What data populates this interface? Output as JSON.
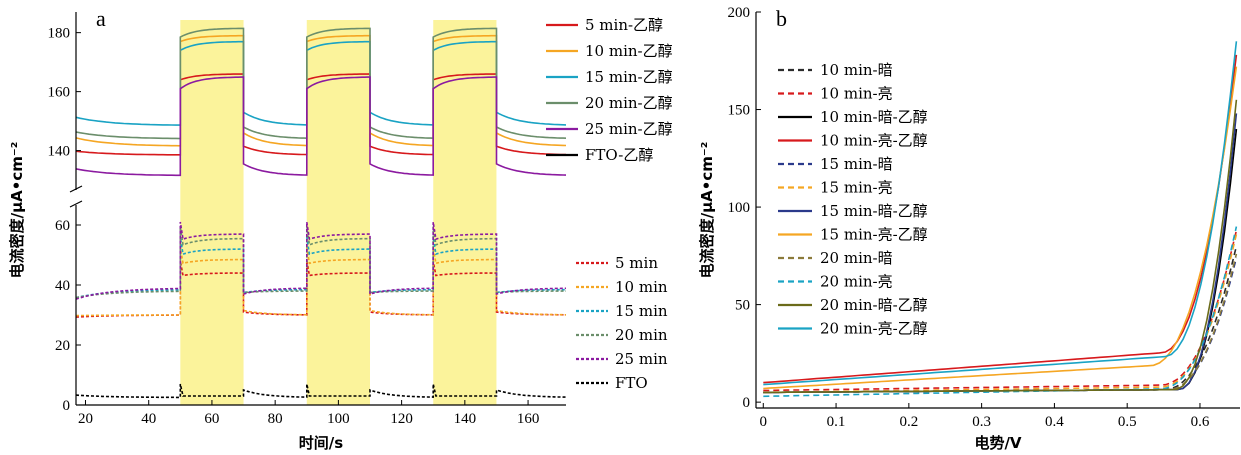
{
  "chart_data": [
    {
      "panel": "a",
      "type": "line",
      "xlabel": "时间/s",
      "ylabel": "电流密度/μA•cm⁻²",
      "xlim": [
        17,
        172
      ],
      "xticks": [
        20,
        40,
        60,
        80,
        100,
        120,
        140,
        160
      ],
      "upper_ylim": [
        128,
        187
      ],
      "upper_yticks": [
        140,
        160,
        180
      ],
      "lower_ylim": [
        0,
        65
      ],
      "lower_yticks": [
        0,
        20,
        40,
        60
      ],
      "light_on_intervals": [
        [
          50,
          70
        ],
        [
          90,
          110
        ],
        [
          130,
          150
        ]
      ],
      "light_color": "#fbf39b",
      "upper_series": [
        {
          "name": "5 min-乙醇",
          "color": "#d7191c",
          "dash": false,
          "dark": [
            139,
            138.5
          ],
          "light": [
            164,
            166
          ]
        },
        {
          "name": "10 min-乙醇",
          "color": "#f5a623",
          "dark": [
            143.5,
            141.5
          ],
          "light": [
            177,
            179
          ],
          "dash": false
        },
        {
          "name": "15 min-乙醇",
          "color": "#1aa3c4",
          "dark": [
            150.5,
            148.5
          ],
          "light": [
            174,
            177
          ],
          "dash": false
        },
        {
          "name": "20 min-乙醇",
          "color": "#6b8e6b",
          "dark": [
            145.5,
            144
          ],
          "light": [
            178.5,
            181.5
          ],
          "dash": false
        },
        {
          "name": "25 min-乙醇",
          "color": "#8b1aa0",
          "dark": [
            133,
            131.5
          ],
          "light": [
            161,
            165
          ],
          "dash": false
        }
      ],
      "upper_extra_legend": [
        {
          "name": "FTO-乙醇",
          "color": "#000000"
        }
      ],
      "lower_series": [
        {
          "name": "5 min",
          "color": "#d7191c",
          "dash": true,
          "dark": [
            28.5,
            30
          ],
          "light": [
            43,
            44
          ]
        },
        {
          "name": "10 min",
          "color": "#f5a623",
          "dash": true,
          "dark": [
            29,
            30
          ],
          "light": [
            47,
            48.5
          ]
        },
        {
          "name": "15 min",
          "color": "#1aa3c4",
          "dash": true,
          "dark": [
            35,
            38.5
          ],
          "light": [
            50,
            52
          ]
        },
        {
          "name": "20 min",
          "color": "#6b8e6b",
          "dash": true,
          "dark": [
            35,
            38
          ],
          "light": [
            53,
            55.5
          ]
        },
        {
          "name": "25 min",
          "color": "#8b1aa0",
          "dash": true,
          "dark": [
            34.5,
            39
          ],
          "light": [
            55,
            57
          ]
        },
        {
          "name": "FTO",
          "color": "#000000",
          "dash": true,
          "dark": [
            2.5,
            2.5
          ],
          "light": [
            3,
            3
          ]
        }
      ]
    },
    {
      "panel": "b",
      "type": "line",
      "xlabel": "电势/V",
      "ylabel": "电流密度/μA•cm⁻²",
      "xlim": [
        -0.01,
        0.655
      ],
      "ylim": [
        -3,
        200
      ],
      "xticks": [
        0,
        0.1,
        0.2,
        0.3,
        0.4,
        0.5,
        0.6
      ],
      "yticks": [
        0,
        50,
        100,
        150,
        200
      ],
      "series": [
        {
          "name": "10 min-暗",
          "color": "#2b2b2b",
          "dash": true,
          "base": 5,
          "slope": 2.5,
          "knee": 0.55,
          "end": 80
        },
        {
          "name": "10 min-亮",
          "color": "#d7191c",
          "dash": true,
          "base": 6,
          "slope": 5,
          "knee": 0.545,
          "end": 88
        },
        {
          "name": "10 min-暗-乙醇",
          "color": "#000000",
          "dash": false,
          "base": 5,
          "slope": 2.5,
          "knee": 0.57,
          "end": 140
        },
        {
          "name": "10 min-亮-乙醇",
          "color": "#d7191c",
          "dash": false,
          "base": 10,
          "slope": 28,
          "knee": 0.545,
          "end": 178
        },
        {
          "name": "15 min-暗",
          "color": "#2b3a8b",
          "dash": true,
          "base": 5,
          "slope": 2.5,
          "knee": 0.555,
          "end": 74
        },
        {
          "name": "15 min-亮",
          "color": "#f5a623",
          "dash": true,
          "base": 5,
          "slope": 5,
          "knee": 0.545,
          "end": 86
        },
        {
          "name": "15 min-暗-乙醇",
          "color": "#2b3a8b",
          "dash": false,
          "base": 5,
          "slope": 2.5,
          "knee": 0.57,
          "end": 148
        },
        {
          "name": "15 min-亮-乙醇",
          "color": "#f5a623",
          "dash": false,
          "base": 7,
          "slope": 22,
          "knee": 0.53,
          "end": 172
        },
        {
          "name": "20 min-暗",
          "color": "#8b7a3a",
          "dash": true,
          "base": 5,
          "slope": 2.5,
          "knee": 0.555,
          "end": 76
        },
        {
          "name": "20 min-亮",
          "color": "#1aa3c4",
          "dash": true,
          "base": 3,
          "slope": 7,
          "knee": 0.545,
          "end": 90
        },
        {
          "name": "20 min-暗-乙醇",
          "color": "#6b6b1a",
          "dash": false,
          "base": 5,
          "slope": 2.5,
          "knee": 0.565,
          "end": 155
        },
        {
          "name": "20 min-亮-乙醇",
          "color": "#1aa3c4",
          "dash": false,
          "base": 9,
          "slope": 26,
          "knee": 0.55,
          "end": 185
        }
      ]
    }
  ]
}
